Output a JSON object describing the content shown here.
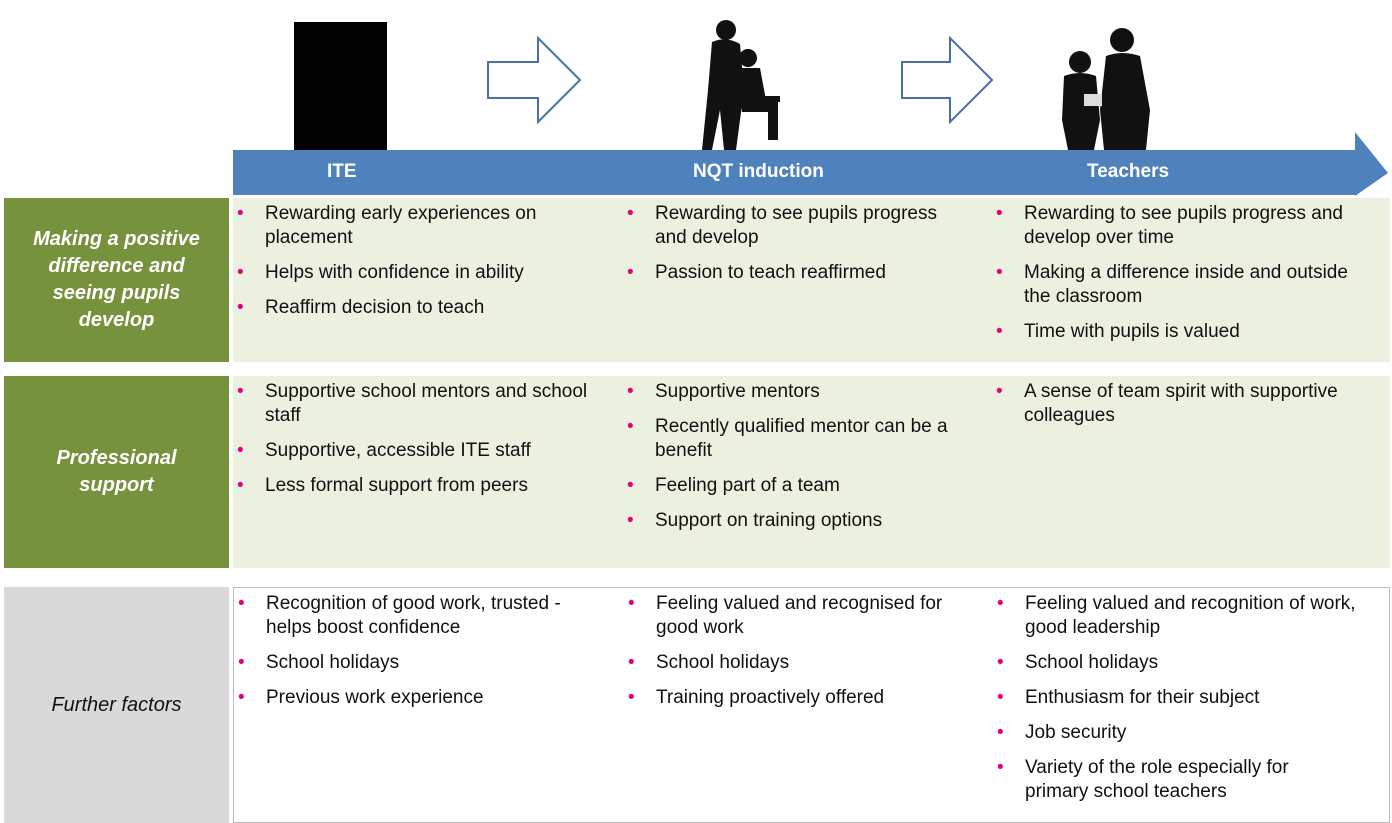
{
  "stages": [
    "ITE",
    "NQT induction",
    "Teachers"
  ],
  "rows": [
    {
      "label": "Making a positive difference and seeing pupils develop",
      "cells": [
        [
          "Rewarding early experiences on placement",
          "Helps with confidence in ability",
          "Reaffirm decision to teach"
        ],
        [
          "Rewarding  to  see pupils progress and develop",
          "Passion to teach reaffirmed"
        ],
        [
          "Rewarding to see pupils progress and develop over time",
          "Making a difference inside and outside the classroom",
          "Time with pupils is valued"
        ]
      ]
    },
    {
      "label": "Professional support",
      "cells": [
        [
          "Supportive school mentors and school staff",
          "Supportive, accessible ITE staff",
          "Less formal support from  peers"
        ],
        [
          "Supportive mentors",
          "Recently qualified mentor can be a benefit",
          "Feeling part of a team",
          "Support on training options"
        ],
        [
          "A sense of team spirit with supportive colleagues"
        ]
      ]
    },
    {
      "label": "Further factors",
      "cells": [
        [
          "Recognition of good work, trusted - helps boost confidence",
          "School holidays",
          "Previous work experience"
        ],
        [
          "Feeling valued and recognised for good work",
          "School holidays",
          "Training proactively offered"
        ],
        [
          "Feeling valued and recognition of work, good leadership",
          "School holidays",
          "Enthusiasm for their subject",
          "Job security",
          "Variety of the role especially for primary school teachers"
        ]
      ]
    }
  ]
}
